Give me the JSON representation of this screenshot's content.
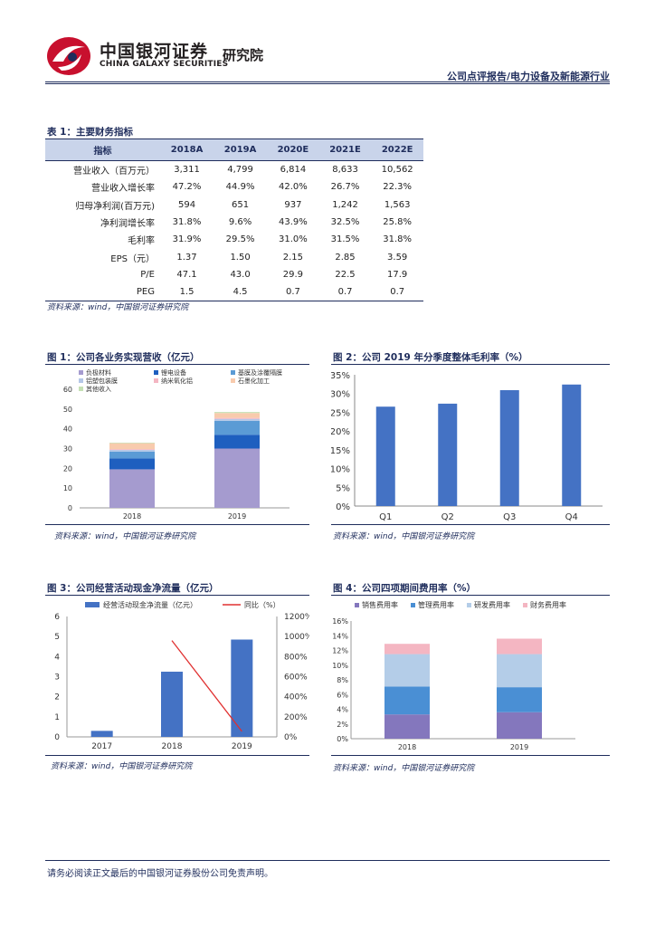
{
  "header": {
    "brand_cn": "中国银河证券",
    "brand_en": "CHINA GALAXY SECURITIES",
    "institute": "研究院",
    "report_tag": "公司点评报告/电力设备及新能源行业"
  },
  "table1": {
    "title": "表 1：主要财务指标",
    "headers": [
      "指标",
      "2018A",
      "2019A",
      "2020E",
      "2021E",
      "2022E"
    ],
    "rows": [
      [
        "营业收入（百万元）",
        "3,311",
        "4,799",
        "6,814",
        "8,633",
        "10,562"
      ],
      [
        "营业收入增长率",
        "47.2%",
        "44.9%",
        "42.0%",
        "26.7%",
        "22.3%"
      ],
      [
        "归母净利润(百万元)",
        "594",
        "651",
        "937",
        "1,242",
        "1,563"
      ],
      [
        "净利润增长率",
        "31.8%",
        "9.6%",
        "43.9%",
        "32.5%",
        "25.8%"
      ],
      [
        "毛利率",
        "31.9%",
        "29.5%",
        "31.0%",
        "31.5%",
        "31.8%"
      ],
      [
        "EPS（元）",
        "1.37",
        "1.50",
        "2.15",
        "2.85",
        "3.59"
      ],
      [
        "P/E",
        "47.1",
        "43.0",
        "29.9",
        "22.5",
        "17.9"
      ],
      [
        "PEG",
        "1.5",
        "4.5",
        "0.7",
        "0.7",
        "0.7"
      ]
    ],
    "source": "资料来源：wind，中国银河证券研究院"
  },
  "figures": {
    "fig1_title": "图 1：公司各业务实现营收（亿元）",
    "fig2_title": "图 2：公司 2019 年分季度整体毛利率（%）",
    "fig3_title": "图 3：公司经营活动现金净流量（亿元）",
    "fig4_title": "图 4：公司四项期间费用率（%）",
    "source": "资料来源：wind，中国银河证券研究院"
  },
  "chart_data": [
    {
      "type": "bar",
      "stacked": true,
      "categories": [
        "2018",
        "2019"
      ],
      "series": [
        {
          "name": "负极材料",
          "values": [
            19.5,
            30.0
          ],
          "color": "#a59bcf"
        },
        {
          "name": "锂电设备",
          "values": [
            5.5,
            7.0
          ],
          "color": "#1e5fbf"
        },
        {
          "name": "基膜及涂覆隔膜",
          "values": [
            3.5,
            7.0
          ],
          "color": "#5b9bd5"
        },
        {
          "name": "铝塑包装膜",
          "values": [
            0.8,
            1.0
          ],
          "color": "#b4c7e7"
        },
        {
          "name": "纳米氧化铝",
          "values": [
            0.4,
            0.5
          ],
          "color": "#f4b6c2"
        },
        {
          "name": "石墨化加工",
          "values": [
            3.0,
            2.5
          ],
          "color": "#f8cbad"
        },
        {
          "name": "其他收入",
          "values": [
            0.3,
            0.5
          ],
          "color": "#c5e0b4"
        }
      ],
      "ylim": [
        0,
        60
      ],
      "yticks": [
        "0",
        "10",
        "20",
        "30",
        "40",
        "50",
        "60"
      ],
      "legend": "top"
    },
    {
      "type": "bar",
      "categories": [
        "Q1",
        "Q2",
        "Q3",
        "Q4"
      ],
      "values": [
        26.5,
        27.3,
        30.9,
        32.4
      ],
      "color": "#4472c4",
      "ylim": [
        0,
        35
      ],
      "yticks": [
        "0%",
        "5%",
        "10%",
        "15%",
        "20%",
        "25%",
        "30%",
        "35%"
      ]
    },
    {
      "type": "bar+line",
      "categories": [
        "2017",
        "2018",
        "2019"
      ],
      "series": [
        {
          "name": "经营活动现金净流量（亿元）",
          "kind": "bar",
          "values": [
            0.3,
            3.25,
            4.85
          ],
          "color": "#4472c4"
        },
        {
          "name": "同比（%）",
          "kind": "line",
          "values": [
            null,
            960,
            55
          ],
          "color": "#e03030"
        }
      ],
      "ylim_left": [
        0,
        6
      ],
      "yticks_left": [
        "0",
        "1",
        "2",
        "3",
        "4",
        "5",
        "6"
      ],
      "ylim_right": [
        0,
        1200
      ],
      "yticks_right": [
        "0%",
        "200%",
        "400%",
        "600%",
        "800%",
        "1000%",
        "1200%"
      ],
      "legend": "top"
    },
    {
      "type": "bar",
      "stacked": true,
      "categories": [
        "2018",
        "2019"
      ],
      "series": [
        {
          "name": "销售费用率",
          "values": [
            3.3,
            3.6
          ],
          "color": "#8477bd"
        },
        {
          "name": "管理费用率",
          "values": [
            3.8,
            3.4
          ],
          "color": "#4a8fd4"
        },
        {
          "name": "研发费用率",
          "values": [
            4.4,
            4.5
          ],
          "color": "#b4cde8"
        },
        {
          "name": "财务费用率",
          "values": [
            1.4,
            2.1
          ],
          "color": "#f4b6c2"
        }
      ],
      "ylim": [
        0,
        16
      ],
      "yticks": [
        "0%",
        "2%",
        "4%",
        "6%",
        "8%",
        "10%",
        "12%",
        "14%",
        "16%"
      ],
      "legend": "top"
    }
  ],
  "footer": {
    "disclaimer": "请务必阅读正文最后的中国银河证券股份公司免责声明。"
  }
}
